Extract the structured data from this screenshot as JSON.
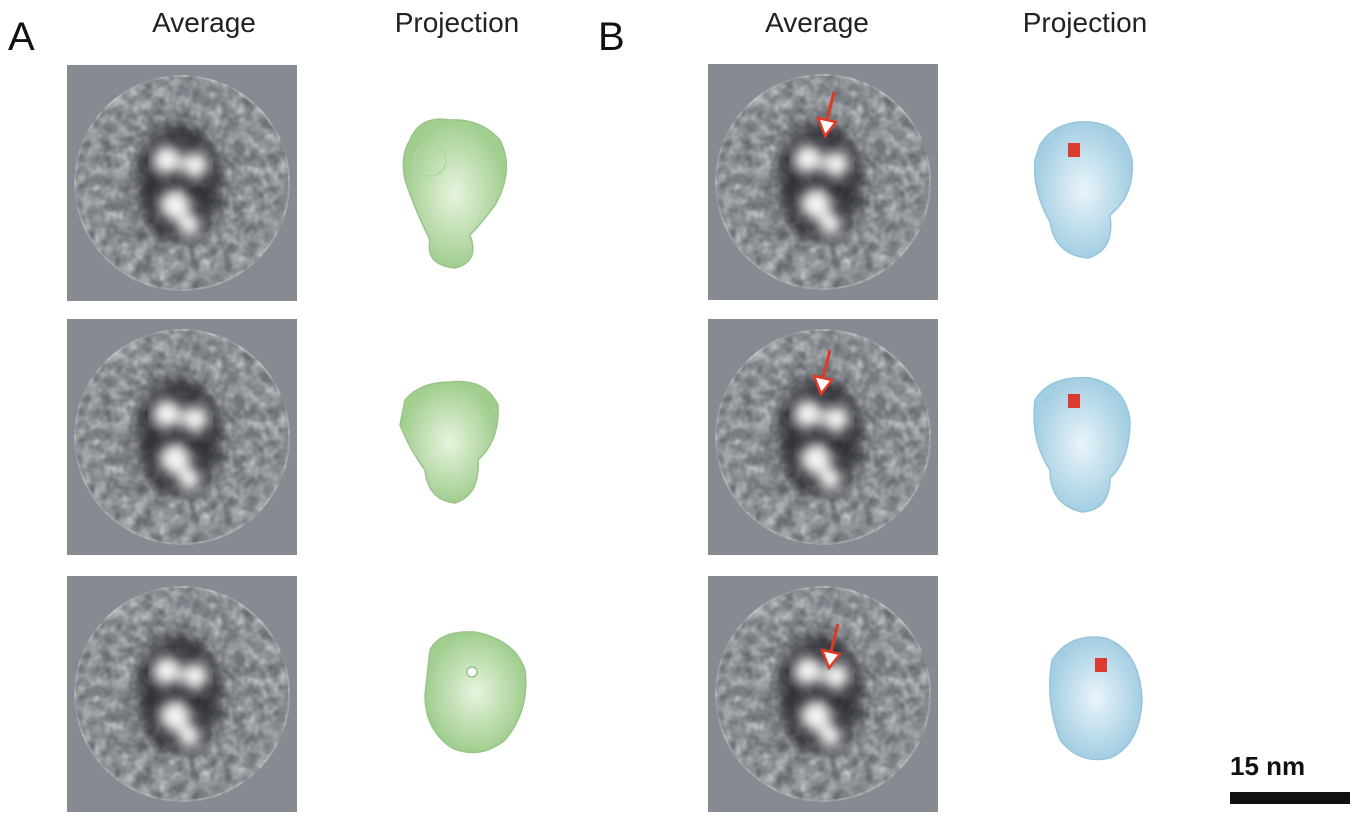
{
  "panels": [
    {
      "label": "A",
      "columns": [
        "Average",
        "Projection"
      ]
    },
    {
      "label": "B",
      "columns": [
        "Average",
        "Projection"
      ]
    }
  ],
  "scale_bar": {
    "label": "15 nm"
  }
}
